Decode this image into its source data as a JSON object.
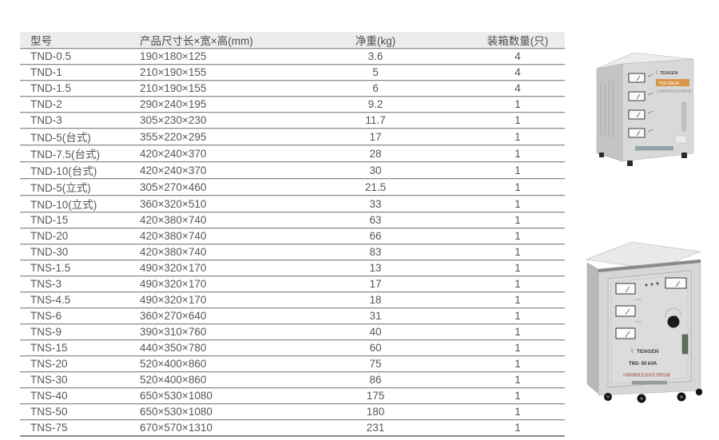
{
  "table": {
    "headers": [
      "型号",
      "产品尺寸长×宽×高(mm)",
      "净重(kg)",
      "装箱数量(只)"
    ],
    "rows": [
      [
        "TND-0.5",
        "190×180×125",
        "3.6",
        "4"
      ],
      [
        "TND-1",
        "210×190×155",
        "5",
        "4"
      ],
      [
        "TND-1.5",
        "210×190×155",
        "6",
        "4"
      ],
      [
        "TND-2",
        "290×240×195",
        "9.2",
        "1"
      ],
      [
        "TND-3",
        "305×230×230",
        "11.7",
        "1"
      ],
      [
        "TND-5(台式)",
        "355×220×295",
        "17",
        "1"
      ],
      [
        "TND-7.5(台式)",
        "420×240×370",
        "28",
        "1"
      ],
      [
        "TND-10(台式)",
        "420×240×370",
        "30",
        "1"
      ],
      [
        "TND-5(立式)",
        "305×270×460",
        "21.5",
        "1"
      ],
      [
        "TND-10(立式)",
        "360×320×510",
        "33",
        "1"
      ],
      [
        "TND-15",
        "420×380×740",
        "63",
        "1"
      ],
      [
        "TND-20",
        "420×380×740",
        "66",
        "1"
      ],
      [
        "TND-30",
        "420×380×740",
        "83",
        "1"
      ],
      [
        "TNS-1.5",
        "490×320×170",
        "13",
        "1"
      ],
      [
        "TNS-3",
        "490×320×170",
        "17",
        "1"
      ],
      [
        "TNS-4.5",
        "490×320×170",
        "18",
        "1"
      ],
      [
        "TNS-6",
        "360×270×640",
        "31",
        "1"
      ],
      [
        "TNS-9",
        "390×310×760",
        "40",
        "1"
      ],
      [
        "TNS-15",
        "440×350×780",
        "60",
        "1"
      ],
      [
        "TNS-20",
        "520×400×860",
        "75",
        "1"
      ],
      [
        "TNS-30",
        "520×400×860",
        "86",
        "1"
      ],
      [
        "TNS-40",
        "650×530×1080",
        "175",
        "1"
      ],
      [
        "TNS-50",
        "650×530×1080",
        "180",
        "1"
      ],
      [
        "TNS-75",
        "670×570×1310",
        "231",
        "1"
      ]
    ]
  },
  "products": {
    "small": {
      "brand": "TENGEN",
      "banner": "TNS-30kVA",
      "subtitle": "三相高精度全自动交流稳压器"
    },
    "large": {
      "brand": "TENGEN",
      "model": "TNS- 50 kVA",
      "subtitle": "三相高精度全自动交流稳压器"
    }
  },
  "colors": {
    "header_bg": "#ececec",
    "border_dark": "#8f8f8f",
    "border_light": "#dcdcdc",
    "text": "#575757",
    "banner_orange": "#d9964a",
    "cabinet_front": "#d9d9d9",
    "cabinet_side": "#c4c4c4"
  }
}
